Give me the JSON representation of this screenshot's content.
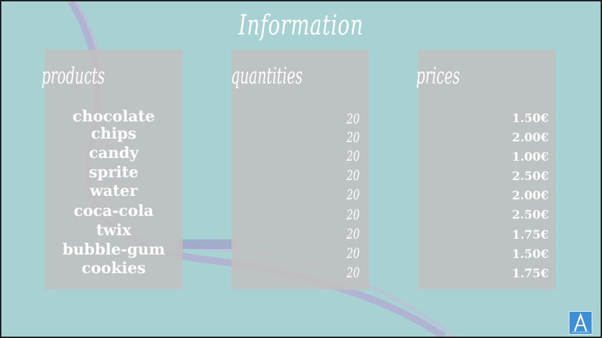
{
  "slide": {
    "title": "Information",
    "colors": {
      "background": "#a7d1d3",
      "panel": "#c0c0c0",
      "text": "#ffffff",
      "logo": "#3f8fd6"
    }
  },
  "columns": {
    "products": {
      "heading": "products",
      "items": [
        "chocolate",
        "chips",
        "candy",
        "sprite",
        "water",
        "coca-cola",
        "twix",
        "bubble-gum",
        "cookies"
      ]
    },
    "quantities": {
      "heading": "quantities",
      "items": [
        "20",
        "20",
        "20",
        "20",
        "20",
        "20",
        "20",
        "20",
        "20"
      ]
    },
    "prices": {
      "heading": "prices",
      "items": [
        "1.50€",
        "2.00€",
        "1.00€",
        "2.50€",
        "2.00€",
        "2.50€",
        "1.75€",
        "1.50€",
        "1.75€"
      ]
    }
  },
  "logo": {
    "icon": "letter-a-logo-icon"
  }
}
